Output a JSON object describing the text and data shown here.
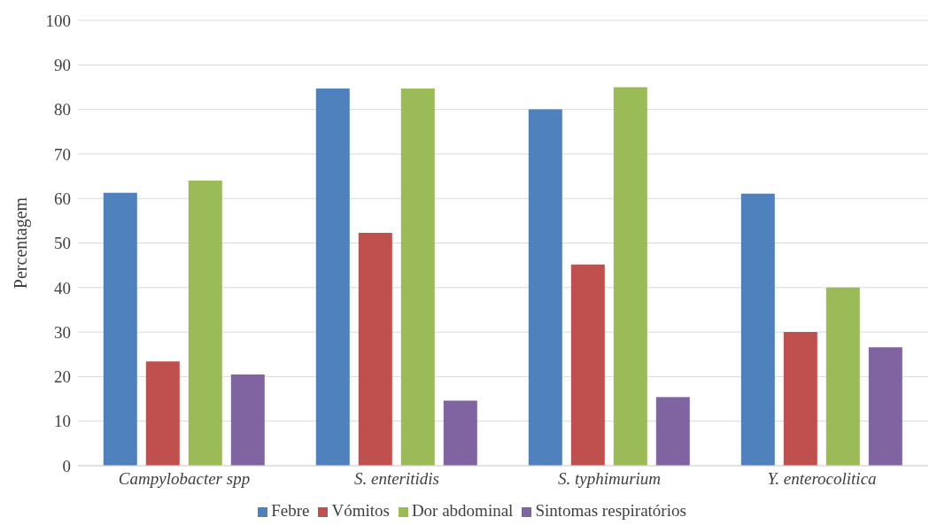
{
  "chart_data": {
    "type": "bar",
    "ylabel": "Percentagem",
    "categories": [
      "Campylobacter spp",
      "S. enteritidis",
      "S. typhimurium",
      "Y. enterocolitica"
    ],
    "series": [
      {
        "name": "Febre",
        "color": "#4f81bd",
        "values": [
          61.3,
          84.7,
          80,
          61.1
        ]
      },
      {
        "name": "Vómitos",
        "color": "#c0504d",
        "values": [
          23.4,
          52.3,
          45.2,
          30
        ]
      },
      {
        "name": "Dor abdominal",
        "color": "#9bbb59",
        "values": [
          64,
          84.7,
          85,
          40
        ]
      },
      {
        "name": "Sintomas respiratórios",
        "color": "#8064a2",
        "values": [
          20.5,
          14.6,
          15.4,
          26.6
        ]
      }
    ],
    "ylim": [
      0,
      100
    ],
    "yticks": [
      0,
      10,
      20,
      30,
      40,
      50,
      60,
      70,
      80,
      90,
      100
    ],
    "grid": "y",
    "legend": "bottom"
  }
}
